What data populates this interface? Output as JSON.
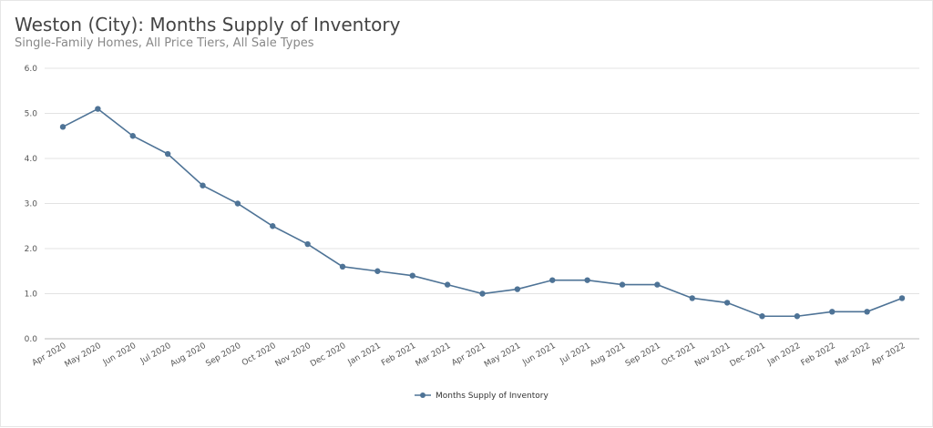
{
  "chart_data": {
    "type": "line",
    "title": "Weston (City): Months Supply of Inventory",
    "subtitle": "Single-Family Homes, All Price Tiers, All Sale Types",
    "xlabel": "",
    "ylabel": "",
    "ylim": [
      0,
      6
    ],
    "yticks": [
      "0.0",
      "1.0",
      "2.0",
      "3.0",
      "4.0",
      "5.0",
      "6.0"
    ],
    "grid": true,
    "legend_position": "bottom",
    "color": "#4e7396",
    "categories": [
      "Apr 2020",
      "May 2020",
      "Jun 2020",
      "Jul 2020",
      "Aug 2020",
      "Sep 2020",
      "Oct 2020",
      "Nov 2020",
      "Dec 2020",
      "Jan 2021",
      "Feb 2021",
      "Mar 2021",
      "Apr 2021",
      "May 2021",
      "Jun 2021",
      "Jul 2021",
      "Aug 2021",
      "Sep 2021",
      "Oct 2021",
      "Nov 2021",
      "Dec 2021",
      "Jan 2022",
      "Feb 2022",
      "Mar 2022",
      "Apr 2022"
    ],
    "series": [
      {
        "name": "Months Supply of Inventory",
        "values": [
          4.7,
          5.1,
          4.5,
          4.1,
          3.4,
          3.0,
          2.5,
          2.1,
          1.6,
          1.5,
          1.4,
          1.2,
          1.0,
          1.1,
          1.3,
          1.3,
          1.2,
          1.2,
          0.9,
          0.8,
          0.5,
          0.5,
          0.6,
          0.6,
          0.9
        ]
      }
    ]
  }
}
